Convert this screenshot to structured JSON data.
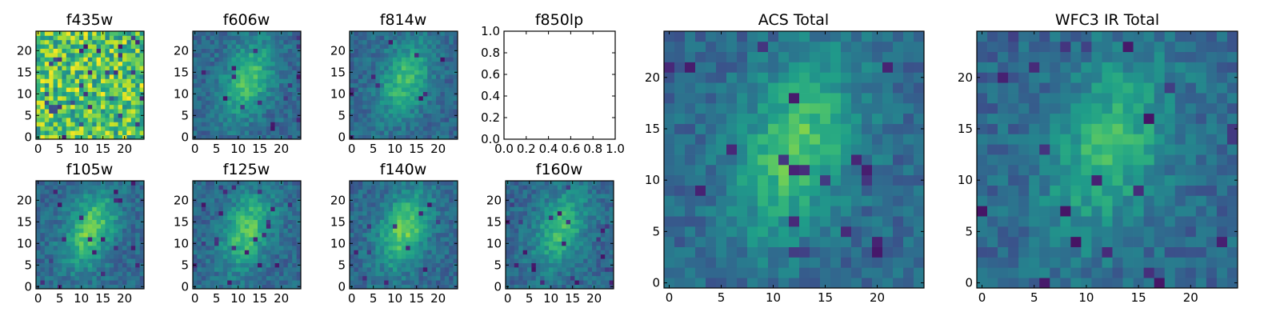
{
  "chart_data": [
    {
      "id": "f435w",
      "type": "heatmap",
      "title": "f435w",
      "grid_size": 25,
      "pattern": "noise",
      "brightness": 0.78,
      "xticks": [
        "0",
        "5",
        "10",
        "15",
        "20"
      ],
      "yticks": [
        "0",
        "5",
        "10",
        "15",
        "20"
      ],
      "xlim": [
        -0.5,
        24.5
      ],
      "ylim": [
        -0.5,
        24.5
      ]
    },
    {
      "id": "f606w",
      "type": "heatmap",
      "title": "f606w",
      "grid_size": 25,
      "pattern": "galaxy",
      "brightness": 0.5,
      "xticks": [
        "0",
        "5",
        "10",
        "15",
        "20"
      ],
      "yticks": [
        "0",
        "5",
        "10",
        "15",
        "20"
      ],
      "xlim": [
        -0.5,
        24.5
      ],
      "ylim": [
        -0.5,
        24.5
      ]
    },
    {
      "id": "f814w",
      "type": "heatmap",
      "title": "f814w",
      "grid_size": 25,
      "pattern": "galaxy",
      "brightness": 0.45,
      "xticks": [
        "0",
        "5",
        "10",
        "15",
        "20"
      ],
      "yticks": [
        "0",
        "5",
        "10",
        "15",
        "20"
      ],
      "xlim": [
        -0.5,
        24.5
      ],
      "ylim": [
        -0.5,
        24.5
      ]
    },
    {
      "id": "f850lp",
      "type": "empty",
      "title": "f850lp",
      "xticks": [
        "0.0",
        "0.2",
        "0.4",
        "0.6",
        "0.8",
        "1.0"
      ],
      "yticks": [
        "0.0",
        "0.2",
        "0.4",
        "0.6",
        "0.8",
        "1.0"
      ],
      "xlim": [
        0,
        1
      ],
      "ylim": [
        0,
        1
      ]
    },
    {
      "id": "f105w",
      "type": "heatmap",
      "title": "f105w",
      "grid_size": 25,
      "pattern": "galaxy",
      "brightness": 0.55,
      "xticks": [
        "0",
        "5",
        "10",
        "15",
        "20"
      ],
      "yticks": [
        "0",
        "5",
        "10",
        "15",
        "20"
      ],
      "xlim": [
        -0.5,
        24.5
      ],
      "ylim": [
        -0.5,
        24.5
      ]
    },
    {
      "id": "f125w",
      "type": "heatmap",
      "title": "f125w",
      "grid_size": 25,
      "pattern": "galaxy",
      "brightness": 0.5,
      "xticks": [
        "0",
        "5",
        "10",
        "15",
        "20"
      ],
      "yticks": [
        "0",
        "5",
        "10",
        "15",
        "20"
      ],
      "xlim": [
        -0.5,
        24.5
      ],
      "ylim": [
        -0.5,
        24.5
      ]
    },
    {
      "id": "f140w",
      "type": "heatmap",
      "title": "f140w",
      "grid_size": 25,
      "pattern": "galaxy",
      "brightness": 0.55,
      "xticks": [
        "0",
        "5",
        "10",
        "15",
        "20"
      ],
      "yticks": [
        "0",
        "5",
        "10",
        "15",
        "20"
      ],
      "xlim": [
        -0.5,
        24.5
      ],
      "ylim": [
        -0.5,
        24.5
      ]
    },
    {
      "id": "f160w",
      "type": "heatmap",
      "title": "f160w",
      "grid_size": 25,
      "pattern": "galaxy",
      "brightness": 0.45,
      "xticks": [
        "0",
        "5",
        "10",
        "15",
        "20"
      ],
      "yticks": [
        "0",
        "5",
        "10",
        "15",
        "20"
      ],
      "xlim": [
        -0.5,
        24.5
      ],
      "ylim": [
        -0.5,
        24.5
      ]
    },
    {
      "id": "acs-total",
      "type": "heatmap",
      "title": "ACS Total",
      "grid_size": 25,
      "pattern": "galaxy",
      "brightness": 0.5,
      "xticks": [
        "0",
        "5",
        "10",
        "15",
        "20"
      ],
      "yticks": [
        "0",
        "5",
        "10",
        "15",
        "20"
      ],
      "xlim": [
        -0.5,
        24.5
      ],
      "ylim": [
        -0.5,
        24.5
      ]
    },
    {
      "id": "wfc3-ir-total",
      "type": "heatmap",
      "title": "WFC3 IR Total",
      "grid_size": 25,
      "pattern": "galaxy",
      "brightness": 0.42,
      "xticks": [
        "0",
        "5",
        "10",
        "15",
        "20"
      ],
      "yticks": [
        "0",
        "5",
        "10",
        "15",
        "20"
      ],
      "xlim": [
        -0.5,
        24.5
      ],
      "ylim": [
        -0.5,
        24.5
      ]
    }
  ],
  "colormap": {
    "name": "viridis",
    "stops": [
      "#440154",
      "#482878",
      "#3e4989",
      "#31688e",
      "#26828e",
      "#1f9e89",
      "#35b779",
      "#6ece58",
      "#b5de2b",
      "#fde725"
    ]
  }
}
